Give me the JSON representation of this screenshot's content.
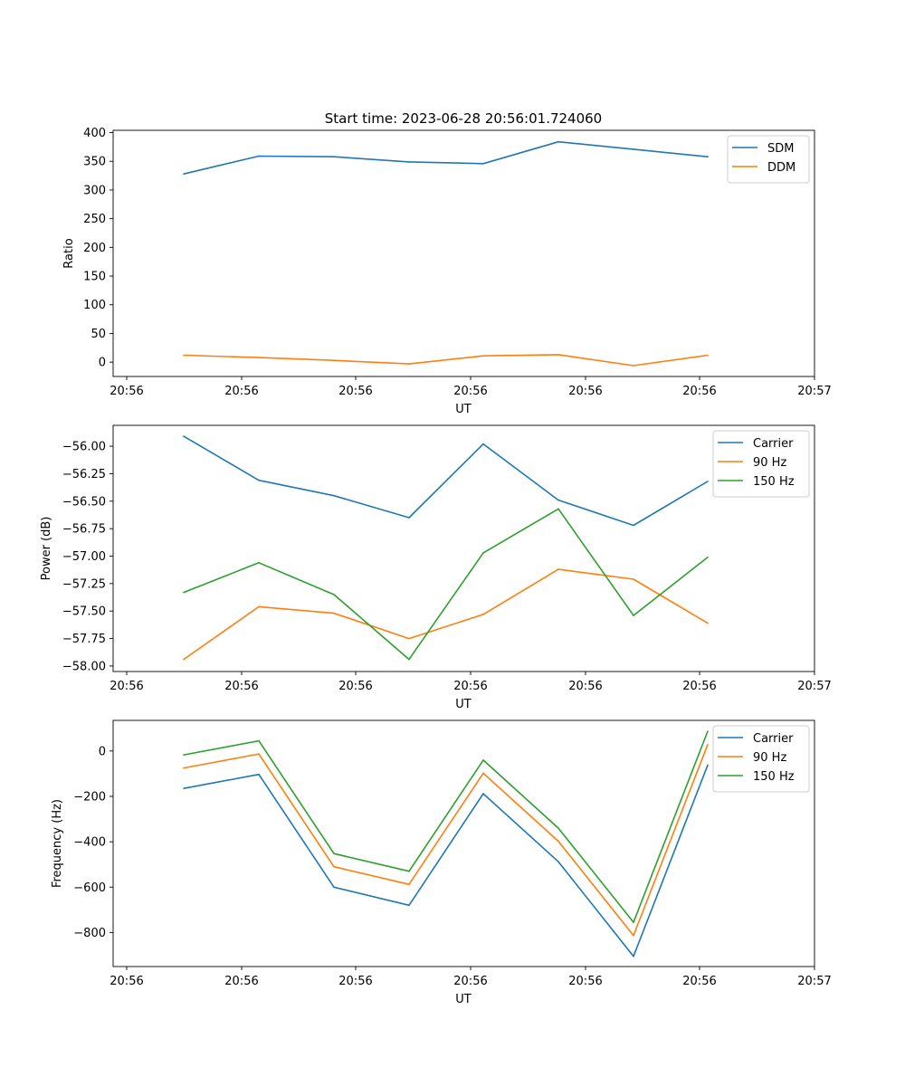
{
  "figure_title": "Start time: 2023-06-28 20:56:01.724060",
  "chart_data": [
    {
      "type": "line",
      "title": "Start time: 2023-06-28 20:56:01.724060",
      "xlabel": "UT",
      "ylabel": "Ratio",
      "xticklabels": [
        "20:56",
        "20:56",
        "20:56",
        "20:56",
        "20:56",
        "20:56",
        "20:57"
      ],
      "ylim": [
        -25,
        404
      ],
      "yticks": [
        0,
        50,
        100,
        150,
        200,
        250,
        300,
        350,
        400
      ],
      "legend_position": "top-right",
      "series": [
        {
          "name": "SDM",
          "color": "#1f77b4",
          "values": [
            328,
            359,
            358,
            349,
            346,
            384,
            371,
            358
          ]
        },
        {
          "name": "DDM",
          "color": "#ff7f0e",
          "values": [
            12,
            8,
            3,
            -3,
            11,
            13,
            -6,
            12
          ]
        }
      ]
    },
    {
      "type": "line",
      "title": "",
      "xlabel": "UT",
      "ylabel": "Power (dB)",
      "xticklabels": [
        "20:56",
        "20:56",
        "20:56",
        "20:56",
        "20:56",
        "20:56",
        "20:57"
      ],
      "ylim": [
        -58.05,
        -55.81
      ],
      "yticks": [
        -58.0,
        -57.75,
        -57.5,
        -57.25,
        -57.0,
        -56.75,
        -56.5,
        -56.25,
        -56.0
      ],
      "ytickformat": 2,
      "legend_position": "top-right",
      "series": [
        {
          "name": "Carrier",
          "color": "#1f77b4",
          "values": [
            -55.91,
            -56.31,
            -56.45,
            -56.65,
            -55.98,
            -56.49,
            -56.72,
            -56.32
          ]
        },
        {
          "name": "90 Hz",
          "color": "#ff7f0e",
          "values": [
            -57.94,
            -57.46,
            -57.52,
            -57.75,
            -57.53,
            -57.12,
            -57.21,
            -57.61
          ]
        },
        {
          "name": "150 Hz",
          "color": "#2ca02c",
          "values": [
            -57.33,
            -57.06,
            -57.35,
            -57.94,
            -56.97,
            -56.57,
            -57.54,
            -57.01
          ]
        }
      ]
    },
    {
      "type": "line",
      "title": "",
      "xlabel": "UT",
      "ylabel": "Frequency (Hz)",
      "xticklabels": [
        "20:56",
        "20:56",
        "20:56",
        "20:56",
        "20:56",
        "20:56",
        "20:57"
      ],
      "ylim": [
        -950,
        135
      ],
      "yticks": [
        -800,
        -600,
        -400,
        -200,
        0
      ],
      "legend_position": "top-right",
      "series": [
        {
          "name": "Carrier",
          "color": "#1f77b4",
          "values": [
            -165,
            -103,
            -600,
            -680,
            -188,
            -488,
            -905,
            -62
          ]
        },
        {
          "name": "90 Hz",
          "color": "#ff7f0e",
          "values": [
            -75,
            -13,
            -510,
            -588,
            -98,
            -398,
            -813,
            28
          ]
        },
        {
          "name": "150 Hz",
          "color": "#2ca02c",
          "values": [
            -17,
            45,
            -452,
            -530,
            -40,
            -340,
            -755,
            87
          ]
        }
      ]
    }
  ]
}
